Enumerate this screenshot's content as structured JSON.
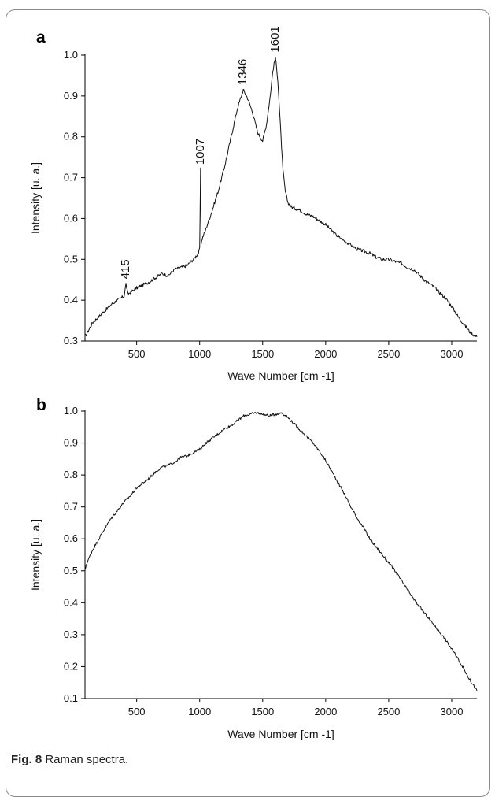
{
  "caption": {
    "label": "Fig. 8",
    "text": "Raman spectra."
  },
  "chart_data": [
    {
      "panel": "a",
      "type": "line",
      "xlabel": "Wave Number [cm -1]",
      "ylabel": "Intensity [u. a.]",
      "xlim": [
        90,
        3200
      ],
      "ylim": [
        0.3,
        1.0
      ],
      "xticks": [
        500,
        1000,
        1500,
        2000,
        2500,
        3000
      ],
      "yticks": [
        0.3,
        0.4,
        0.5,
        0.6,
        0.7,
        0.8,
        0.9,
        1.0
      ],
      "annotations": [
        {
          "text": "415",
          "x": 415,
          "y": 0.44
        },
        {
          "text": "1007",
          "x": 1007,
          "y": 0.72
        },
        {
          "text": "1346",
          "x": 1346,
          "y": 0.915
        },
        {
          "text": "1601",
          "x": 1601,
          "y": 0.995
        }
      ],
      "series": [
        {
          "x": [
            90,
            150,
            200,
            250,
            300,
            350,
            400,
            415,
            430,
            500,
            600,
            700,
            750,
            800,
            900,
            950,
            990,
            1000,
            1007,
            1012,
            1020,
            1050,
            1100,
            1150,
            1200,
            1250,
            1300,
            1346,
            1380,
            1420,
            1460,
            1500,
            1530,
            1560,
            1580,
            1601,
            1620,
            1640,
            1660,
            1680,
            1700,
            1720,
            1750,
            1800,
            1850,
            1900,
            1950,
            2000,
            2050,
            2100,
            2150,
            2200,
            2250,
            2300,
            2350,
            2400,
            2450,
            2500,
            2550,
            2600,
            2650,
            2700,
            2750,
            2800,
            2850,
            2900,
            2950,
            3000,
            3050,
            3100,
            3150,
            3200
          ],
          "y": [
            0.31,
            0.345,
            0.36,
            0.375,
            0.39,
            0.4,
            0.41,
            0.44,
            0.415,
            0.43,
            0.445,
            0.465,
            0.46,
            0.475,
            0.485,
            0.5,
            0.515,
            0.525,
            0.72,
            0.54,
            0.55,
            0.575,
            0.62,
            0.67,
            0.73,
            0.8,
            0.87,
            0.915,
            0.895,
            0.86,
            0.81,
            0.79,
            0.83,
            0.9,
            0.96,
            0.995,
            0.94,
            0.83,
            0.72,
            0.665,
            0.64,
            0.63,
            0.625,
            0.62,
            0.61,
            0.605,
            0.595,
            0.585,
            0.57,
            0.555,
            0.545,
            0.535,
            0.525,
            0.52,
            0.515,
            0.505,
            0.5,
            0.5,
            0.495,
            0.49,
            0.48,
            0.475,
            0.46,
            0.445,
            0.435,
            0.42,
            0.405,
            0.385,
            0.36,
            0.34,
            0.32,
            0.31
          ]
        }
      ]
    },
    {
      "panel": "b",
      "type": "line",
      "xlabel": "Wave Number [cm -1]",
      "ylabel": "Intensity [u. a.]",
      "xlim": [
        90,
        3200
      ],
      "ylim": [
        0.1,
        1.0
      ],
      "xticks": [
        500,
        1000,
        1500,
        2000,
        2500,
        3000
      ],
      "yticks": [
        0.1,
        0.2,
        0.3,
        0.4,
        0.5,
        0.6,
        0.7,
        0.8,
        0.9,
        1.0
      ],
      "series": [
        {
          "x": [
            90,
            100,
            150,
            200,
            250,
            300,
            350,
            400,
            450,
            500,
            550,
            600,
            650,
            700,
            750,
            800,
            850,
            900,
            950,
            1000,
            1050,
            1100,
            1150,
            1200,
            1250,
            1300,
            1350,
            1400,
            1450,
            1500,
            1550,
            1600,
            1650,
            1700,
            1750,
            1800,
            1850,
            1900,
            1950,
            2000,
            2050,
            2100,
            2150,
            2200,
            2250,
            2300,
            2350,
            2400,
            2450,
            2500,
            2550,
            2600,
            2650,
            2700,
            2750,
            2800,
            2850,
            2900,
            2950,
            3000,
            3050,
            3100,
            3150,
            3200
          ],
          "y": [
            0.5,
            0.52,
            0.565,
            0.6,
            0.635,
            0.665,
            0.69,
            0.715,
            0.735,
            0.76,
            0.775,
            0.79,
            0.81,
            0.825,
            0.83,
            0.84,
            0.855,
            0.86,
            0.87,
            0.88,
            0.9,
            0.915,
            0.93,
            0.945,
            0.955,
            0.97,
            0.985,
            0.99,
            0.995,
            0.99,
            0.985,
            0.99,
            0.995,
            0.98,
            0.96,
            0.94,
            0.92,
            0.9,
            0.875,
            0.845,
            0.81,
            0.775,
            0.74,
            0.7,
            0.665,
            0.635,
            0.6,
            0.575,
            0.55,
            0.525,
            0.5,
            0.47,
            0.44,
            0.41,
            0.385,
            0.36,
            0.335,
            0.31,
            0.285,
            0.255,
            0.225,
            0.19,
            0.155,
            0.125
          ]
        }
      ]
    }
  ]
}
